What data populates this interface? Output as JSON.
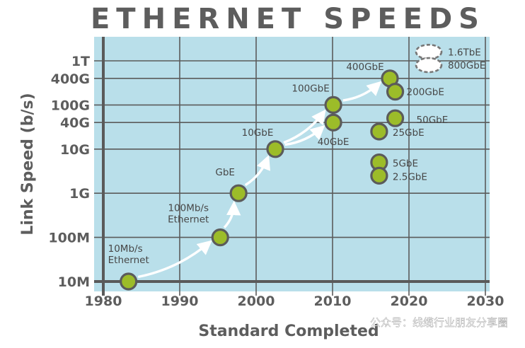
{
  "colors": {
    "plot_bg": "#b9dfea",
    "grid": "#5b5b5b",
    "axis": "#5a5a5a",
    "point_fill": "#9cbc29",
    "point_stroke": "#5b5b5b",
    "arrow": "#ffffff",
    "title": "#5d5d5d",
    "label": "#474747"
  },
  "watermark": "公众号：线缆行业朋友分享圈",
  "chart_data": {
    "type": "scatter",
    "title": "ETHERNET SPEEDS",
    "xlabel": "Standard Completed",
    "ylabel": "Link Speed (b/s)",
    "x_ticks": [
      "1980",
      "1990",
      "2000",
      "2010",
      "2020",
      "2030"
    ],
    "y_ticks": [
      "10M",
      "100M",
      "1G",
      "10G",
      "40G",
      "100G",
      "400G",
      "1T"
    ],
    "xlim": [
      1980,
      2030
    ],
    "ylim_bps": [
      10000000,
      1000000000000
    ],
    "y_scale": "log",
    "grid": true,
    "points": [
      {
        "label": "10Mb/s\nEthernet",
        "year": 1983.3,
        "speed_bps": 10000000
      },
      {
        "label": "100Mb/s\nEthernet",
        "year": 1995.3,
        "speed_bps": 100000000
      },
      {
        "label": "GbE",
        "year": 1997.7,
        "speed_bps": 1000000000
      },
      {
        "label": "10GbE",
        "year": 2002.5,
        "speed_bps": 10000000000
      },
      {
        "label": "40GbE",
        "year": 2010.1,
        "speed_bps": 40000000000
      },
      {
        "label": "100GbE",
        "year": 2010.1,
        "speed_bps": 100000000000
      },
      {
        "label": "400GbE",
        "year": 2017.5,
        "speed_bps": 400000000000
      },
      {
        "label": "200GbE",
        "year": 2018.2,
        "speed_bps": 200000000000
      },
      {
        "label": "50GbE",
        "year": 2018.2,
        "speed_bps": 50000000000
      },
      {
        "label": "25GbE",
        "year": 2016.1,
        "speed_bps": 25000000000
      },
      {
        "label": "5GbE",
        "year": 2016.1,
        "speed_bps": 5000000000
      },
      {
        "label": "2.5GbE",
        "year": 2016.1,
        "speed_bps": 2500000000
      }
    ],
    "future": [
      {
        "label": "1.6TbE",
        "speed_bps": 1600000000000
      },
      {
        "label": "800GbE",
        "speed_bps": 800000000000
      }
    ],
    "arrows": [
      [
        "10Mb/s\nEthernet",
        "100Mb/s\nEthernet"
      ],
      [
        "100Mb/s\nEthernet",
        "GbE"
      ],
      [
        "GbE",
        "10GbE"
      ],
      [
        "10GbE",
        "100GbE"
      ],
      [
        "10GbE",
        "40GbE"
      ],
      [
        "100GbE",
        "400GbE"
      ]
    ]
  }
}
